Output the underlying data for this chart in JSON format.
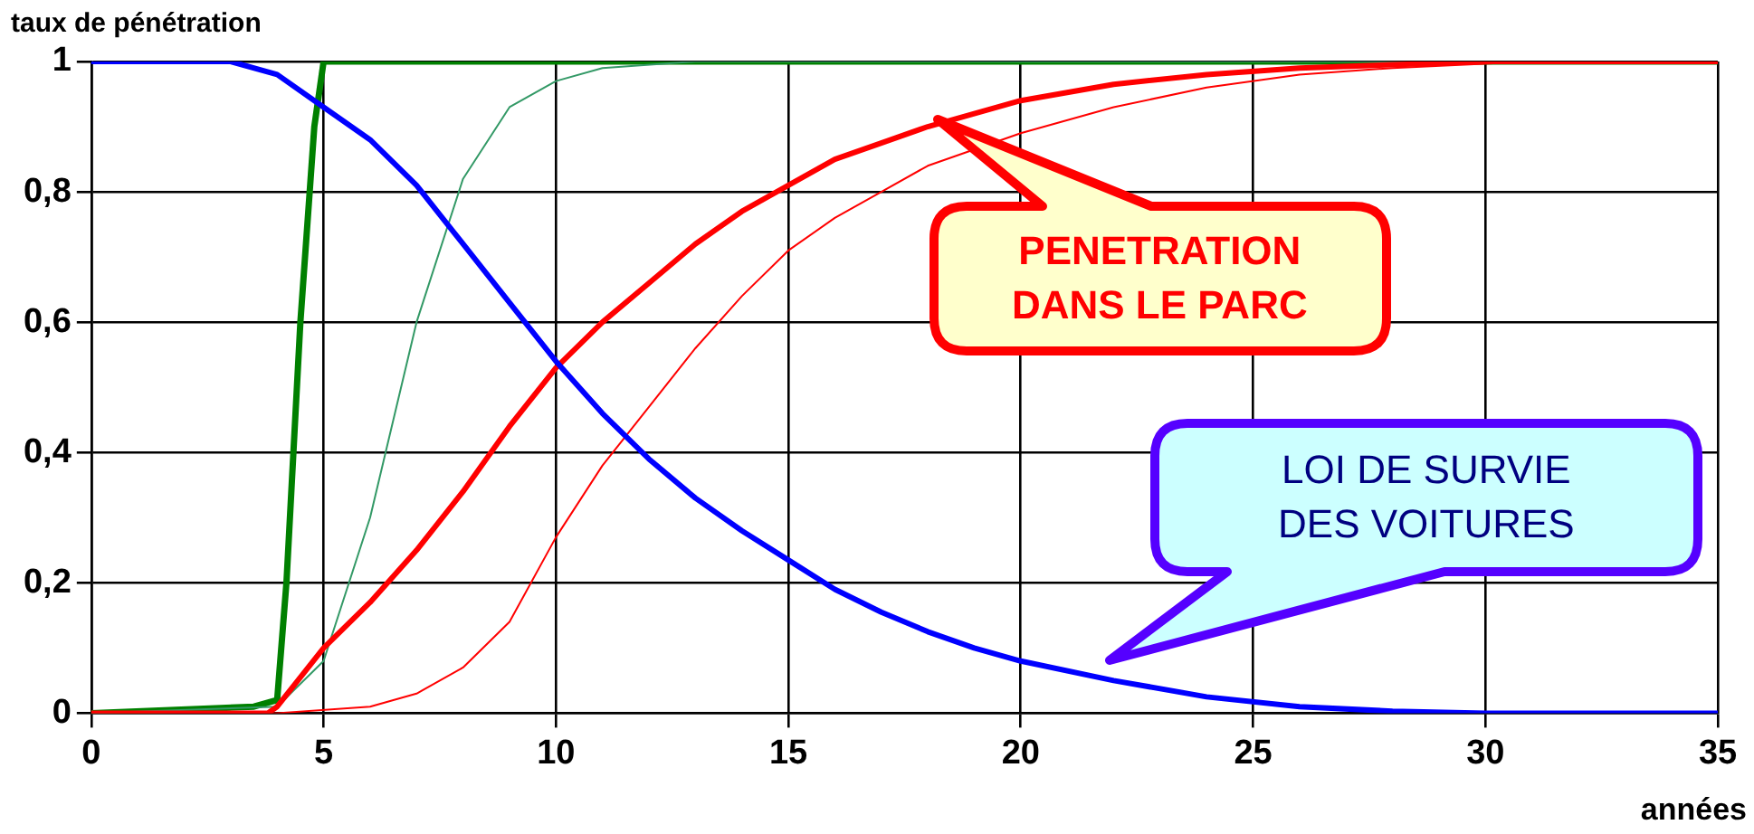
{
  "chart_data": {
    "type": "line",
    "ylabel": "taux de pénétration",
    "xlabel": "années",
    "xlim": [
      0,
      35
    ],
    "xticks": [
      0,
      5,
      10,
      15,
      20,
      25,
      30,
      35
    ],
    "ylim": [
      0,
      1
    ],
    "yticks": [
      0,
      {
        "value": 0.2,
        "label": "0,2"
      },
      {
        "value": 0.4,
        "label": "0,4"
      },
      {
        "value": 0.6,
        "label": "0,6"
      },
      {
        "value": 0.8,
        "label": "0,8"
      },
      1
    ],
    "grid": true,
    "legend": false,
    "marker": "none",
    "line_style": "solid",
    "annotations": [
      "PENETRATION\nDANS LE PARC",
      "LOI DE SURVIE\nDES VOITURES"
    ],
    "series": [
      {
        "color": "#0000ff",
        "x": [
          0,
          3,
          4,
          5,
          6,
          7,
          8,
          9,
          10,
          11,
          12,
          13,
          14,
          15,
          16,
          17,
          18,
          19,
          20,
          22,
          24,
          26,
          28,
          30,
          35
        ],
        "values": [
          1,
          1,
          0.98,
          0.93,
          0.88,
          0.81,
          0.72,
          0.63,
          0.54,
          0.46,
          0.39,
          0.33,
          0.28,
          0.235,
          0.19,
          0.155,
          0.125,
          0.1,
          0.08,
          0.05,
          0.025,
          0.01,
          0.003,
          0,
          0
        ]
      },
      {
        "color": "#ff0000",
        "x": [
          0,
          3.5,
          3.8,
          4,
          5,
          6,
          7,
          8,
          9,
          10,
          11,
          12,
          13,
          14,
          15,
          16,
          17,
          18,
          20,
          22,
          24,
          26,
          28,
          30,
          35
        ],
        "values": [
          0,
          0,
          0,
          0.01,
          0.1,
          0.17,
          0.25,
          0.34,
          0.44,
          0.53,
          0.6,
          0.66,
          0.72,
          0.77,
          0.81,
          0.85,
          0.875,
          0.9,
          0.94,
          0.965,
          0.98,
          0.99,
          0.995,
          1,
          1
        ]
      },
      {
        "color": "#ff0000",
        "x": [
          0,
          4,
          6,
          7,
          8,
          9,
          10,
          11,
          12,
          13,
          14,
          15,
          16,
          17,
          18,
          20,
          22,
          24,
          26,
          28,
          31,
          35
        ],
        "values": [
          0,
          0,
          0.01,
          0.03,
          0.07,
          0.14,
          0.27,
          0.38,
          0.47,
          0.56,
          0.64,
          0.71,
          0.76,
          0.8,
          0.84,
          0.89,
          0.93,
          0.96,
          0.98,
          0.99,
          1,
          1
        ]
      },
      {
        "color": "#339966",
        "x": [
          0,
          4,
          5,
          6,
          7,
          8,
          9,
          10,
          11,
          13,
          35
        ],
        "values": [
          0,
          0.01,
          0.08,
          0.3,
          0.6,
          0.82,
          0.93,
          0.97,
          0.99,
          1,
          1
        ]
      },
      {
        "color": "#008000",
        "x": [
          0,
          3.5,
          4,
          4.2,
          4.5,
          4.8,
          5,
          35
        ],
        "values": [
          0,
          0.01,
          0.02,
          0.2,
          0.6,
          0.9,
          1,
          1
        ]
      }
    ]
  }
}
